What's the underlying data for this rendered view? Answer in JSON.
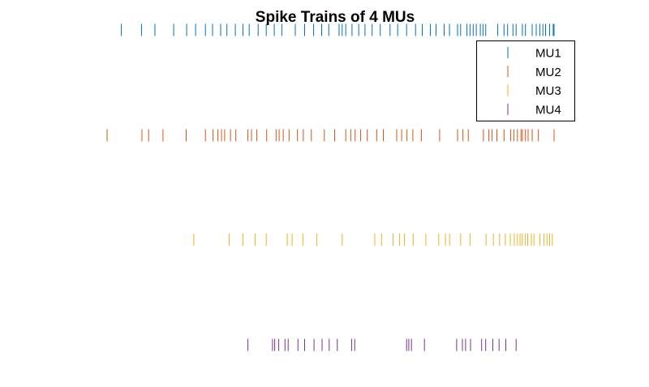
{
  "chart_data": {
    "type": "scatter",
    "title": "Spike Trains of 4 MUs",
    "xlabel": "",
    "ylabel": "",
    "axes_visible": false,
    "grid": false,
    "xlim": [
      0,
      1000
    ],
    "legend": {
      "placement": "top-right"
    },
    "series": [
      {
        "name": "MU1",
        "color": "#0072bd",
        "spikes": [
          32,
          77,
          107,
          149,
          178,
          198,
          220,
          236,
          254,
          268,
          287,
          304,
          318,
          338,
          356,
          374,
          391,
          421,
          442,
          462,
          480,
          496,
          519,
          526,
          534,
          548,
          563,
          577,
          593,
          611,
          633,
          650,
          670,
          690,
          705,
          723,
          736,
          754,
          766,
          784,
          791,
          805,
          812,
          819,
          826,
          835,
          841,
          847,
          874,
          888,
          896,
          908,
          915,
          929,
          936,
          951,
          960,
          968,
          975,
          981,
          990,
          998,
          1000
        ]
      },
      {
        "name": "MU2",
        "color": "#d95319",
        "spikes": [
          0,
          78,
          93,
          125,
          177,
          220,
          237,
          248,
          256,
          263,
          276,
          288,
          315,
          323,
          335,
          357,
          378,
          385,
          394,
          407,
          426,
          439,
          457,
          486,
          509,
          534,
          545,
          555,
          567,
          582,
          603,
          618,
          648,
          659,
          671,
          684,
          703,
          744,
          784,
          796,
          808,
          842,
          854,
          861,
          872,
          888,
          903,
          910,
          918,
          926,
          929,
          936,
          942,
          951,
          965,
          1000
        ]
      },
      {
        "name": "MU3",
        "color": "#edb120",
        "spikes": [
          194,
          273,
          304,
          331,
          356,
          403,
          414,
          438,
          469,
          526,
          599,
          614,
          640,
          654,
          665,
          685,
          713,
          742,
          757,
          766,
          791,
          812,
          848,
          864,
          878,
          891,
          902,
          911,
          918,
          924,
          929,
          936,
          941,
          949,
          955,
          968,
          977,
          984,
          990,
          996
        ]
      },
      {
        "name": "MU4",
        "color": "#7e2f8e",
        "spikes": [
          315,
          370,
          375,
          384,
          398,
          405,
          427,
          442,
          463,
          481,
          497,
          515,
          547,
          554,
          670,
          675,
          681,
          710,
          782,
          795,
          802,
          813,
          838,
          847,
          863,
          877,
          892,
          915
        ]
      }
    ]
  }
}
